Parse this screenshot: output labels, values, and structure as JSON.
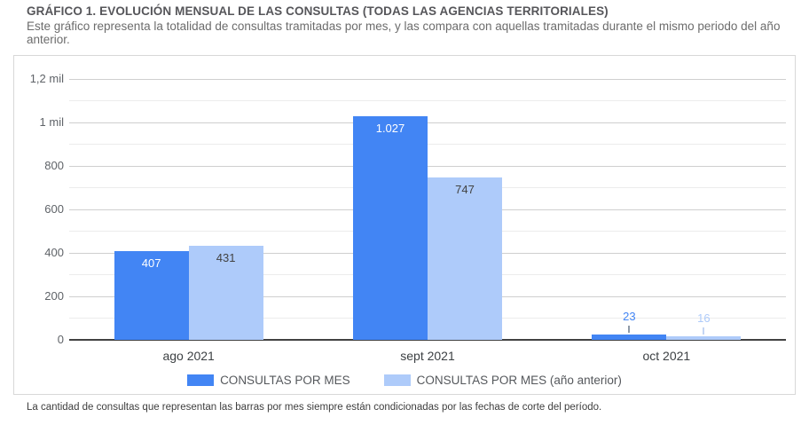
{
  "header": {
    "title": "GRÁFICO 1. EVOLUCIÓN MENSUAL DE LAS CONSULTAS (TODAS LAS AGENCIAS TERRITORIALES)",
    "subtitle": "Este gráfico representa la totalidad de consultas tramitadas por mes, y las compara con aquellas tramitadas durante el mismo periodo del año anterior."
  },
  "footnote": "La cantidad de consultas que representan las barras por mes siempre están condicionadas por las fechas de corte del período.",
  "chart_data": {
    "type": "bar",
    "title": "GRÁFICO 1. EVOLUCIÓN MENSUAL DE LAS CONSULTAS (TODAS LAS AGENCIAS TERRITORIALES)",
    "categories": [
      "ago 2021",
      "sept 2021",
      "oct 2021"
    ],
    "series": [
      {
        "name": "CONSULTAS POR MES",
        "color": "#4285F4",
        "values": [
          407,
          1027,
          23
        ],
        "value_labels": [
          "407",
          "1.027",
          "23"
        ]
      },
      {
        "name": "CONSULTAS POR MES (año anterior)",
        "color": "#AECBFA",
        "values": [
          431,
          747,
          16
        ],
        "value_labels": [
          "431",
          "747",
          "16"
        ]
      }
    ],
    "ylim": [
      0,
      1200
    ],
    "y_ticks": [
      {
        "value": 0,
        "label": "0"
      },
      {
        "value": 200,
        "label": "200"
      },
      {
        "value": 400,
        "label": "400"
      },
      {
        "value": 600,
        "label": "600"
      },
      {
        "value": 800,
        "label": "800"
      },
      {
        "value": 1000,
        "label": "1 mil"
      },
      {
        "value": 1200,
        "label": "1,2 mil"
      }
    ],
    "grid": "horizontal major+minor",
    "legend_position": "bottom"
  }
}
